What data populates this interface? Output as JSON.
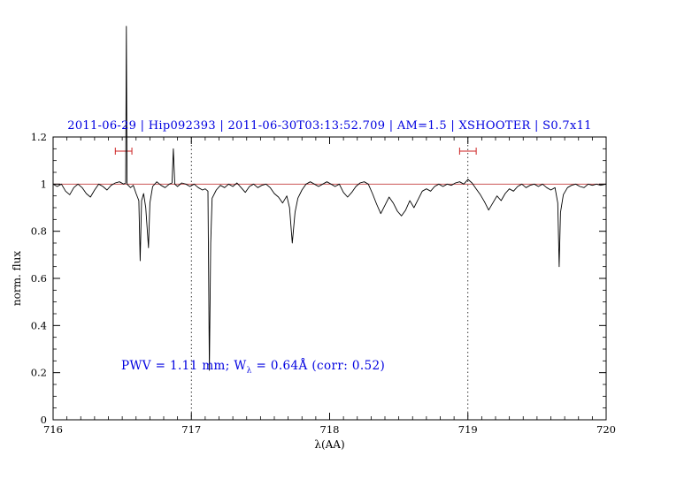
{
  "title": "2011-06-29 | Hip092393 | 2011-06-30T03:13:52.709 | AM=1.5 | XSHOOTER | S0.7x11",
  "annotation": {
    "prefix": "PWV = 1.11 mm; W",
    "sub": "λ",
    "suffix": " = 0.64Å (corr: 0.52)"
  },
  "axes": {
    "xlabel": "λ(AA)",
    "ylabel": "norm. flux"
  },
  "colors": {
    "title_text": "#0000e0",
    "annotation_text": "#0000e0",
    "reference_line": "#cc5555",
    "marker": "#cc2222",
    "spectrum": "#000000",
    "frame": "#000000"
  },
  "chart_data": {
    "type": "line",
    "title": "2011-06-29 | Hip092393 | 2011-06-30T03:13:52.709 | AM=1.5 | XSHOOTER | S0.7x11",
    "xlabel": "λ(AA)",
    "ylabel": "norm. flux",
    "xlim": [
      716,
      720
    ],
    "ylim": [
      0,
      1.2
    ],
    "xticks": [
      716,
      717,
      718,
      719,
      720
    ],
    "xtick_labels": [
      "716",
      "717",
      "718",
      "719",
      "720"
    ],
    "yticks": [
      0,
      0.2,
      0.4,
      0.6,
      0.8,
      1.0,
      1.2
    ],
    "ytick_labels": [
      "0",
      "0.2",
      "0.4",
      "0.6",
      "0.8",
      "1",
      "1.2"
    ],
    "x_minor_step": 0.1,
    "y_minor_step": 0.05,
    "grid": false,
    "dotted_vlines": [
      717,
      719
    ],
    "reference_hline": 1.0,
    "markers": [
      {
        "x": 716.51,
        "y": 1.14,
        "halfwidth": 0.06
      },
      {
        "x": 719.0,
        "y": 1.14,
        "halfwidth": 0.06
      }
    ],
    "series": [
      {
        "name": "normalized spectrum",
        "points": [
          [
            716.0,
            1.0
          ],
          [
            716.03,
            0.99
          ],
          [
            716.06,
            1.0
          ],
          [
            716.09,
            0.97
          ],
          [
            716.12,
            0.955
          ],
          [
            716.15,
            0.985
          ],
          [
            716.18,
            1.0
          ],
          [
            716.21,
            0.985
          ],
          [
            716.24,
            0.96
          ],
          [
            716.27,
            0.945
          ],
          [
            716.3,
            0.975
          ],
          [
            716.33,
            1.0
          ],
          [
            716.36,
            0.99
          ],
          [
            716.39,
            0.975
          ],
          [
            716.42,
            0.995
          ],
          [
            716.45,
            1.005
          ],
          [
            716.48,
            1.01
          ],
          [
            716.51,
            1.0
          ],
          [
            716.525,
            1.005
          ],
          [
            716.53,
            1.67
          ],
          [
            716.535,
            1.0
          ],
          [
            716.56,
            0.985
          ],
          [
            716.58,
            0.995
          ],
          [
            716.6,
            0.96
          ],
          [
            716.62,
            0.93
          ],
          [
            716.63,
            0.675
          ],
          [
            716.64,
            0.93
          ],
          [
            716.655,
            0.96
          ],
          [
            716.67,
            0.9
          ],
          [
            716.69,
            0.73
          ],
          [
            716.7,
            0.92
          ],
          [
            716.72,
            0.99
          ],
          [
            716.75,
            1.01
          ],
          [
            716.78,
            0.995
          ],
          [
            716.81,
            0.985
          ],
          [
            716.84,
            1.0
          ],
          [
            716.86,
            1.005
          ],
          [
            716.87,
            1.15
          ],
          [
            716.88,
            1.0
          ],
          [
            716.9,
            0.99
          ],
          [
            716.93,
            1.005
          ],
          [
            716.96,
            1.0
          ],
          [
            716.99,
            0.99
          ],
          [
            717.02,
            1.0
          ],
          [
            717.05,
            0.985
          ],
          [
            717.08,
            0.975
          ],
          [
            717.1,
            0.98
          ],
          [
            717.12,
            0.97
          ],
          [
            717.13,
            0.21
          ],
          [
            717.14,
            0.75
          ],
          [
            717.15,
            0.94
          ],
          [
            717.18,
            0.975
          ],
          [
            717.21,
            0.995
          ],
          [
            717.24,
            0.985
          ],
          [
            717.27,
            1.0
          ],
          [
            717.3,
            0.99
          ],
          [
            717.33,
            1.005
          ],
          [
            717.36,
            0.985
          ],
          [
            717.39,
            0.965
          ],
          [
            717.42,
            0.99
          ],
          [
            717.45,
            1.0
          ],
          [
            717.48,
            0.985
          ],
          [
            717.51,
            0.995
          ],
          [
            717.54,
            1.0
          ],
          [
            717.57,
            0.985
          ],
          [
            717.6,
            0.96
          ],
          [
            717.63,
            0.945
          ],
          [
            717.66,
            0.92
          ],
          [
            717.69,
            0.95
          ],
          [
            717.71,
            0.9
          ],
          [
            717.73,
            0.75
          ],
          [
            717.75,
            0.88
          ],
          [
            717.77,
            0.94
          ],
          [
            717.8,
            0.975
          ],
          [
            717.83,
            1.0
          ],
          [
            717.86,
            1.01
          ],
          [
            717.89,
            1.0
          ],
          [
            717.92,
            0.99
          ],
          [
            717.95,
            1.0
          ],
          [
            717.98,
            1.01
          ],
          [
            718.01,
            1.0
          ],
          [
            718.04,
            0.99
          ],
          [
            718.07,
            1.0
          ],
          [
            718.1,
            0.965
          ],
          [
            718.13,
            0.945
          ],
          [
            718.16,
            0.965
          ],
          [
            718.19,
            0.99
          ],
          [
            718.22,
            1.005
          ],
          [
            718.25,
            1.01
          ],
          [
            718.28,
            1.0
          ],
          [
            718.31,
            0.96
          ],
          [
            718.34,
            0.915
          ],
          [
            718.37,
            0.875
          ],
          [
            718.4,
            0.91
          ],
          [
            718.43,
            0.945
          ],
          [
            718.46,
            0.92
          ],
          [
            718.49,
            0.885
          ],
          [
            718.52,
            0.865
          ],
          [
            718.55,
            0.89
          ],
          [
            718.58,
            0.93
          ],
          [
            718.61,
            0.9
          ],
          [
            718.64,
            0.935
          ],
          [
            718.67,
            0.97
          ],
          [
            718.7,
            0.98
          ],
          [
            718.73,
            0.97
          ],
          [
            718.76,
            0.99
          ],
          [
            718.79,
            1.0
          ],
          [
            718.82,
            0.99
          ],
          [
            718.85,
            1.0
          ],
          [
            718.88,
            0.995
          ],
          [
            718.91,
            1.005
          ],
          [
            718.94,
            1.01
          ],
          [
            718.97,
            1.0
          ],
          [
            719.0,
            1.02
          ],
          [
            719.03,
            1.005
          ],
          [
            719.06,
            0.98
          ],
          [
            719.09,
            0.955
          ],
          [
            719.12,
            0.925
          ],
          [
            719.15,
            0.89
          ],
          [
            719.18,
            0.92
          ],
          [
            719.21,
            0.95
          ],
          [
            719.24,
            0.93
          ],
          [
            719.27,
            0.96
          ],
          [
            719.3,
            0.98
          ],
          [
            719.33,
            0.97
          ],
          [
            719.36,
            0.99
          ],
          [
            719.39,
            1.0
          ],
          [
            719.42,
            0.985
          ],
          [
            719.45,
            0.995
          ],
          [
            719.48,
            1.0
          ],
          [
            719.51,
            0.99
          ],
          [
            719.54,
            1.0
          ],
          [
            719.57,
            0.985
          ],
          [
            719.6,
            0.975
          ],
          [
            719.63,
            0.985
          ],
          [
            719.65,
            0.92
          ],
          [
            719.66,
            0.65
          ],
          [
            719.67,
            0.88
          ],
          [
            719.69,
            0.955
          ],
          [
            719.72,
            0.985
          ],
          [
            719.75,
            0.995
          ],
          [
            719.78,
            1.0
          ],
          [
            719.81,
            0.99
          ],
          [
            719.84,
            0.985
          ],
          [
            719.87,
            1.0
          ],
          [
            719.9,
            0.995
          ],
          [
            719.93,
            1.0
          ],
          [
            719.96,
            0.995
          ],
          [
            720.0,
            1.0
          ]
        ]
      }
    ]
  }
}
